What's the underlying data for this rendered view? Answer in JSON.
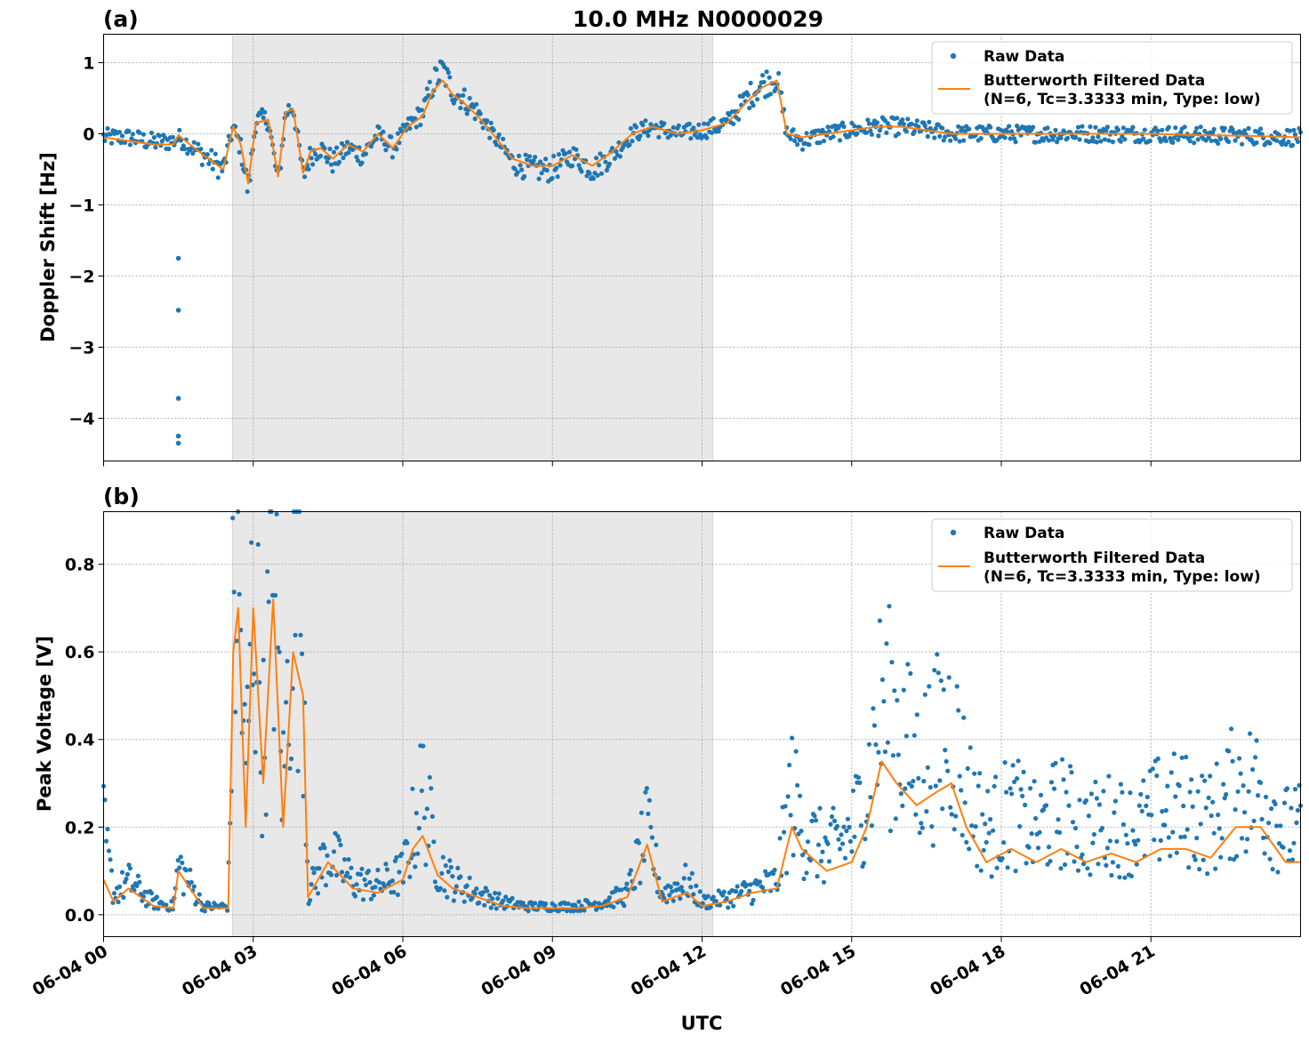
{
  "figure": {
    "title": "10.0 MHz N0000029",
    "xlabel": "UTC"
  },
  "colors": {
    "raw": "#1f77b4",
    "filtered": "#ff7f0e",
    "shade": "#808080"
  },
  "legend": {
    "raw_label": "Raw Data",
    "filtered_line1": "Butterworth Filtered Data",
    "filtered_line2": "(N=6, Tc=3.3333 min, Type: low)"
  },
  "chart_data": [
    {
      "type": "scatter",
      "panel_label": "(a)",
      "title": "10.0 MHz N0000029",
      "xlabel": "UTC",
      "ylabel": "Doppler Shift [Hz]",
      "xlim": [
        "06-04 00:00",
        "06-05 00:00"
      ],
      "ylim": [
        -4.6,
        1.4
      ],
      "x_ticks": [
        "06-04 00",
        "06-04 03",
        "06-04 06",
        "06-04 09",
        "06-04 12",
        "06-04 15",
        "06-04 18",
        "06-04 21"
      ],
      "y_ticks": [
        1,
        0,
        -1,
        -2,
        -3,
        -4
      ],
      "grid": true,
      "legend_position": "top-right",
      "shaded_region": [
        "06-04 02:35",
        "06-04 12:13"
      ],
      "series": [
        {
          "name": "Raw Data",
          "kind": "points",
          "x_hours": [
            0.0,
            0.5,
            1.0,
            1.4,
            1.5,
            2.0,
            2.4,
            2.6,
            2.75,
            2.9,
            3.05,
            3.3,
            3.5,
            3.65,
            3.8,
            4.0,
            4.15,
            4.35,
            4.6,
            4.9,
            5.2,
            5.5,
            5.8,
            6.1,
            6.4,
            6.6,
            6.8,
            7.0,
            7.2,
            7.5,
            7.8,
            8.2,
            8.6,
            9.0,
            9.4,
            9.8,
            10.2,
            10.6,
            11.0,
            11.5,
            12.0,
            12.5,
            12.9,
            13.2,
            13.5,
            13.7,
            14.0,
            14.5,
            15.0,
            15.5,
            16.0,
            16.5,
            17.0,
            18.0,
            19.0,
            20.0,
            21.0,
            22.0,
            23.0,
            24.0
          ],
          "values": [
            -0.05,
            -0.05,
            -0.12,
            -0.1,
            -0.05,
            -0.3,
            -0.5,
            0.1,
            -0.2,
            -0.8,
            0.2,
            0.2,
            -0.7,
            0.3,
            0.4,
            -0.6,
            -0.3,
            -0.2,
            -0.4,
            -0.2,
            -0.3,
            0.0,
            -0.2,
            0.1,
            0.3,
            0.7,
            0.9,
            0.6,
            0.5,
            0.3,
            0.0,
            -0.4,
            -0.5,
            -0.5,
            -0.3,
            -0.5,
            -0.3,
            0.0,
            0.1,
            0.0,
            0.05,
            0.15,
            0.5,
            0.7,
            0.8,
            0.0,
            -0.1,
            0.0,
            0.05,
            0.1,
            0.1,
            0.05,
            0.0,
            0.0,
            0.0,
            0.0,
            0.0,
            -0.02,
            -0.03,
            -0.05
          ],
          "outliers": [
            {
              "x_hours": 1.5,
              "value": -1.75
            },
            {
              "x_hours": 1.5,
              "value": -2.48
            },
            {
              "x_hours": 1.5,
              "value": -3.72
            },
            {
              "x_hours": 1.5,
              "value": -4.25
            },
            {
              "x_hours": 1.5,
              "value": -4.35
            }
          ]
        },
        {
          "name": "Butterworth Filtered Data (N=6, Tc=3.3333 min, Type: low)",
          "kind": "line",
          "x_hours": [
            0.0,
            0.5,
            1.0,
            1.4,
            1.5,
            2.0,
            2.4,
            2.6,
            2.75,
            2.9,
            3.05,
            3.3,
            3.5,
            3.65,
            3.8,
            4.0,
            4.15,
            4.35,
            4.6,
            4.9,
            5.2,
            5.5,
            5.8,
            6.1,
            6.4,
            6.6,
            6.8,
            7.0,
            7.2,
            7.5,
            7.8,
            8.2,
            8.6,
            9.0,
            9.4,
            9.8,
            10.2,
            10.6,
            11.0,
            11.5,
            12.0,
            12.5,
            12.9,
            13.2,
            13.5,
            13.7,
            14.0,
            14.5,
            15.0,
            15.5,
            16.0,
            16.5,
            17.0,
            18.0,
            19.0,
            20.0,
            21.0,
            22.0,
            23.0,
            24.0
          ],
          "values": [
            -0.05,
            -0.1,
            -0.15,
            -0.15,
            -0.02,
            -0.3,
            -0.5,
            0.1,
            -0.15,
            -0.7,
            0.15,
            0.2,
            -0.6,
            0.3,
            0.35,
            -0.55,
            -0.25,
            -0.2,
            -0.35,
            -0.15,
            -0.25,
            0.0,
            -0.2,
            0.1,
            0.25,
            0.6,
            0.75,
            0.55,
            0.45,
            0.25,
            0.0,
            -0.35,
            -0.45,
            -0.45,
            -0.3,
            -0.45,
            -0.25,
            0.0,
            0.1,
            0.0,
            0.05,
            0.15,
            0.45,
            0.65,
            0.75,
            0.0,
            -0.05,
            0.0,
            0.05,
            0.1,
            0.1,
            0.05,
            0.0,
            0.0,
            0.0,
            0.0,
            0.0,
            -0.02,
            -0.03,
            -0.05
          ]
        }
      ]
    },
    {
      "type": "scatter",
      "panel_label": "(b)",
      "xlabel": "UTC",
      "ylabel": "Peak Voltage [V]",
      "xlim": [
        "06-04 00:00",
        "06-05 00:00"
      ],
      "ylim": [
        -0.05,
        0.92
      ],
      "x_ticks": [
        "06-04 00",
        "06-04 03",
        "06-04 06",
        "06-04 09",
        "06-04 12",
        "06-04 15",
        "06-04 18",
        "06-04 21"
      ],
      "y_ticks": [
        0.0,
        0.2,
        0.4,
        0.6,
        0.8
      ],
      "y_tick_labels": [
        "0.0",
        "0.2",
        "0.4",
        "0.6",
        "0.8"
      ],
      "grid": true,
      "legend_position": "top-right",
      "shaded_region": [
        "06-04 02:35",
        "06-04 12:13"
      ],
      "series": [
        {
          "name": "Raw Data",
          "kind": "points",
          "x_hours": [
            0.0,
            0.2,
            0.5,
            1.0,
            1.4,
            1.5,
            2.0,
            2.5,
            2.6,
            2.7,
            2.85,
            3.0,
            3.2,
            3.4,
            3.6,
            3.8,
            4.0,
            4.1,
            4.5,
            5.0,
            5.5,
            6.0,
            6.2,
            6.4,
            6.7,
            7.0,
            7.5,
            8.0,
            8.5,
            9.0,
            9.5,
            10.0,
            10.5,
            10.9,
            11.2,
            11.7,
            12.0,
            12.5,
            13.0,
            13.5,
            13.8,
            14.0,
            14.5,
            15.0,
            15.3,
            15.6,
            15.9,
            16.3,
            16.7,
            17.0,
            17.3,
            17.7,
            18.2,
            18.7,
            19.2,
            19.7,
            20.2,
            20.7,
            21.2,
            21.7,
            22.2,
            22.7,
            23.2,
            23.7,
            24.0
          ],
          "values": [
            0.2,
            0.05,
            0.08,
            0.03,
            0.02,
            0.12,
            0.02,
            0.02,
            0.7,
            0.8,
            0.3,
            0.8,
            0.4,
            0.85,
            0.3,
            0.8,
            0.7,
            0.05,
            0.15,
            0.08,
            0.07,
            0.1,
            0.2,
            0.3,
            0.12,
            0.08,
            0.05,
            0.03,
            0.02,
            0.02,
            0.02,
            0.03,
            0.05,
            0.2,
            0.05,
            0.08,
            0.03,
            0.04,
            0.06,
            0.08,
            0.3,
            0.2,
            0.15,
            0.2,
            0.3,
            0.5,
            0.45,
            0.35,
            0.4,
            0.45,
            0.3,
            0.2,
            0.25,
            0.2,
            0.25,
            0.2,
            0.22,
            0.2,
            0.25,
            0.25,
            0.22,
            0.3,
            0.3,
            0.2,
            0.2
          ]
        },
        {
          "name": "Butterworth Filtered Data (N=6, Tc=3.3333 min, Type: low)",
          "kind": "line",
          "x_hours": [
            0.0,
            0.2,
            0.5,
            1.0,
            1.4,
            1.5,
            2.0,
            2.5,
            2.6,
            2.7,
            2.85,
            3.0,
            3.2,
            3.4,
            3.6,
            3.8,
            4.0,
            4.1,
            4.5,
            5.0,
            5.5,
            6.0,
            6.2,
            6.4,
            6.7,
            7.0,
            7.5,
            8.0,
            8.5,
            9.0,
            9.5,
            10.0,
            10.5,
            10.9,
            11.2,
            11.7,
            12.0,
            12.5,
            13.0,
            13.5,
            13.8,
            14.0,
            14.5,
            15.0,
            15.3,
            15.6,
            15.9,
            16.3,
            16.7,
            17.0,
            17.3,
            17.7,
            18.2,
            18.7,
            19.2,
            19.7,
            20.2,
            20.7,
            21.2,
            21.7,
            22.2,
            22.7,
            23.2,
            23.7,
            24.0
          ],
          "values": [
            0.08,
            0.03,
            0.06,
            0.02,
            0.015,
            0.1,
            0.015,
            0.015,
            0.6,
            0.7,
            0.2,
            0.7,
            0.3,
            0.72,
            0.2,
            0.6,
            0.5,
            0.04,
            0.12,
            0.06,
            0.05,
            0.08,
            0.15,
            0.18,
            0.09,
            0.06,
            0.04,
            0.02,
            0.015,
            0.015,
            0.015,
            0.02,
            0.04,
            0.16,
            0.03,
            0.05,
            0.02,
            0.03,
            0.05,
            0.06,
            0.2,
            0.15,
            0.1,
            0.12,
            0.2,
            0.35,
            0.3,
            0.25,
            0.28,
            0.3,
            0.2,
            0.12,
            0.15,
            0.12,
            0.15,
            0.12,
            0.14,
            0.12,
            0.15,
            0.15,
            0.13,
            0.2,
            0.2,
            0.12,
            0.12
          ]
        }
      ]
    }
  ]
}
